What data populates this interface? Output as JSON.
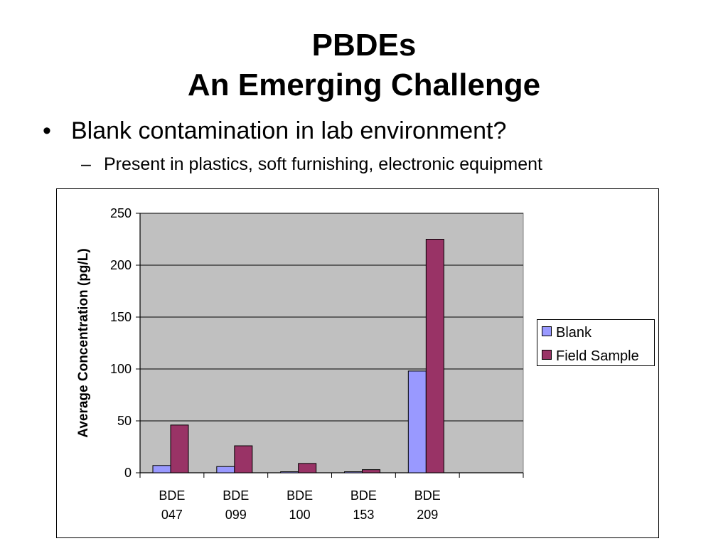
{
  "slide": {
    "title_line1": "PBDEs",
    "title_line2": "An Emerging Challenge",
    "bullet_symbol": "•",
    "bullet_text": "Blank contamination in lab environment?",
    "subbullet_symbol": "–",
    "subbullet_text": "Present in plastics, soft furnishing, electronic equipment"
  },
  "chart_data": {
    "type": "bar",
    "categories": [
      [
        "BDE",
        "047"
      ],
      [
        "BDE",
        "099"
      ],
      [
        "BDE",
        "100"
      ],
      [
        "BDE",
        "153"
      ],
      [
        "BDE",
        "209"
      ]
    ],
    "empty_trailing_slots": 1,
    "series": [
      {
        "name": "Blank",
        "values": [
          7,
          6,
          1,
          1,
          98
        ],
        "color": "#9999FF"
      },
      {
        "name": "Field Sample",
        "values": [
          46,
          26,
          9,
          3,
          225
        ],
        "color": "#993366"
      }
    ],
    "title": "",
    "xlabel": "",
    "ylabel": "Average Concentration (pg/L)",
    "ylim": [
      0,
      250
    ],
    "yticks": [
      0,
      50,
      100,
      150,
      200,
      250
    ],
    "grid": true,
    "plot_background": "#C0C0C0",
    "legend_position": "right"
  }
}
